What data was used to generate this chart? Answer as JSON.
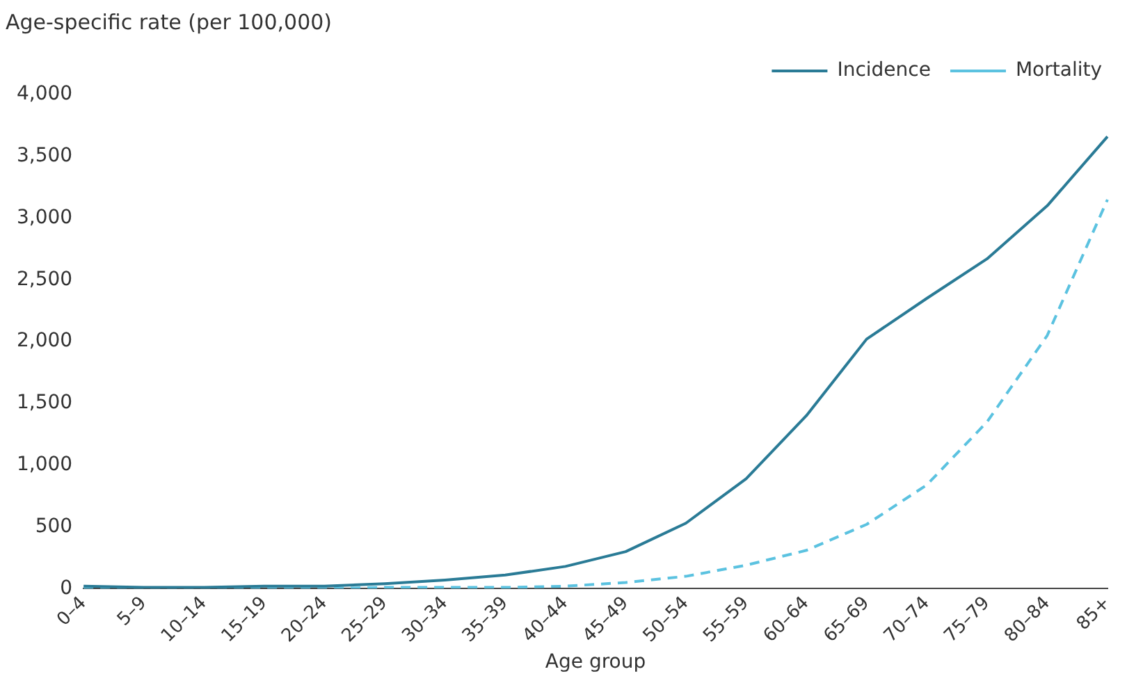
{
  "chart_data": {
    "type": "line",
    "ylabel": "Age-specific rate (per 100,000)",
    "xlabel": "Age group",
    "categories": [
      "0–4",
      "5–9",
      "10–14",
      "15–19",
      "20–24",
      "25–29",
      "30–34",
      "35–39",
      "40–44",
      "45–49",
      "50–54",
      "55–59",
      "60–64",
      "65–69",
      "70–74",
      "75–79",
      "80–84",
      "85+"
    ],
    "series": [
      {
        "name": "Incidence",
        "color": "#2a7b96",
        "line_style": "solid",
        "values": [
          20,
          10,
          10,
          20,
          20,
          40,
          70,
          110,
          180,
          300,
          530,
          890,
          1400,
          2020,
          2350,
          2670,
          3100,
          3660
        ]
      },
      {
        "name": "Mortality",
        "color": "#5bc2e0",
        "line_style": "dashed",
        "values": [
          0,
          0,
          0,
          0,
          0,
          10,
          10,
          10,
          20,
          50,
          100,
          190,
          310,
          520,
          840,
          1350,
          2050,
          3150
        ]
      }
    ],
    "ylim": [
      0,
      4000
    ],
    "yticks": [
      0,
      500,
      {
        "value": 1000,
        "label": "1,000"
      },
      {
        "value": 1500,
        "label": "1,500"
      },
      {
        "value": 2000,
        "label": "2,000"
      },
      {
        "value": 2500,
        "label": "2,500"
      },
      {
        "value": 3000,
        "label": "3,000"
      },
      {
        "value": 3500,
        "label": "3,500"
      },
      {
        "value": 4000,
        "label": "4,000"
      }
    ],
    "grid": false,
    "legend": "top right",
    "marker": "none"
  }
}
